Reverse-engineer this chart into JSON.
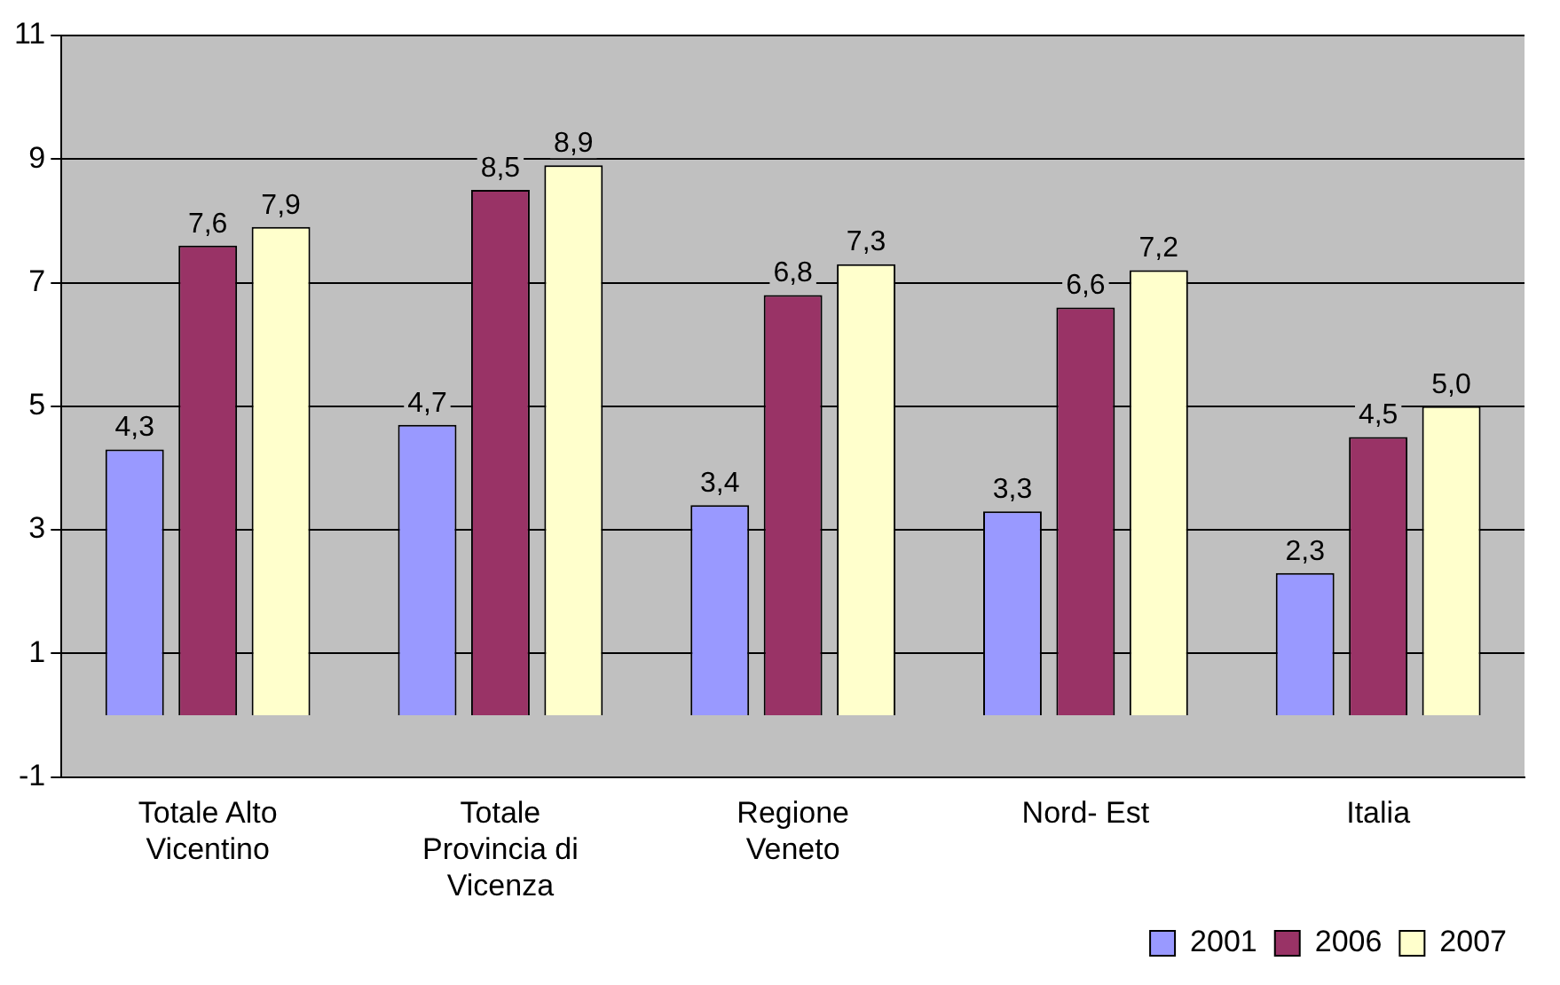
{
  "chart_data": {
    "type": "bar",
    "categories": [
      "Totale Alto Vicentino",
      "Totale Provincia di Vicenza",
      "Regione Veneto",
      "Nord- Est",
      "Italia"
    ],
    "series": [
      {
        "name": "2001",
        "color": "#9999ff",
        "values": [
          4.3,
          4.7,
          3.4,
          3.3,
          2.3
        ],
        "value_labels": [
          "4,3",
          "4,7",
          "3,4",
          "3,3",
          "2,3"
        ]
      },
      {
        "name": "2006",
        "color": "#993366",
        "values": [
          7.6,
          8.5,
          6.8,
          6.6,
          4.5
        ],
        "value_labels": [
          "7,6",
          "8,5",
          "6,8",
          "6,6",
          "4,5"
        ]
      },
      {
        "name": "2007",
        "color": "#ffffcc",
        "values": [
          7.9,
          8.9,
          7.3,
          7.2,
          5.0
        ],
        "value_labels": [
          "7,9",
          "8,9",
          "7,3",
          "7,2",
          "5,0"
        ]
      }
    ],
    "ylim": [
      -1,
      11
    ],
    "yticks": [
      -1,
      1,
      3,
      5,
      7,
      9,
      11
    ],
    "grid": "y",
    "legend": "bottom right"
  }
}
